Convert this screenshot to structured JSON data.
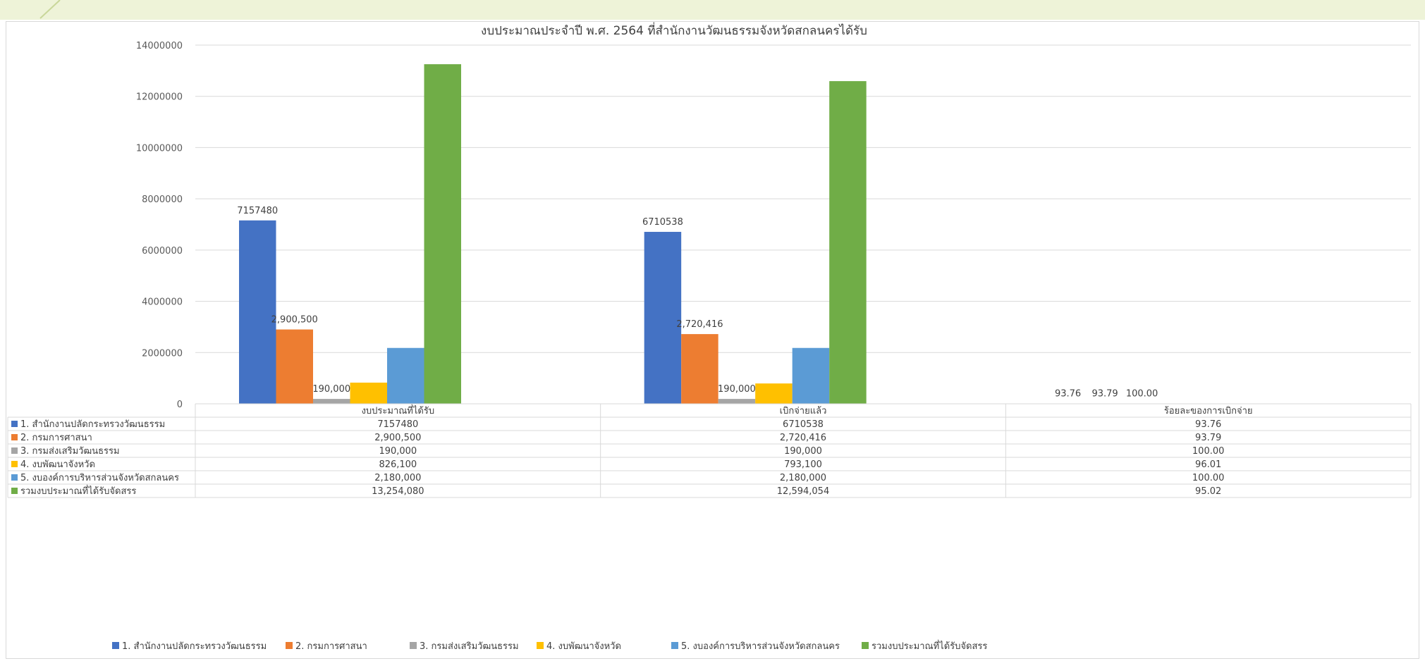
{
  "chart_data": {
    "type": "bar",
    "title": "งบประมาณประจำปี พ.ศ. 2564 ที่สำนักงานวัฒนธรรมจังหวัดสกลนครได้รับ",
    "categories": [
      "งบประมาณที่ได้รับ",
      "เบิกจ่ายแล้ว",
      "ร้อยละของการเบิกจ่าย"
    ],
    "ylim": [
      0,
      14000000
    ],
    "y_ticks": [
      "0",
      "2000000",
      "4000000",
      "6000000",
      "8000000",
      "10000000",
      "12000000",
      "14000000"
    ],
    "grid": true,
    "legend_position": "bottom",
    "series": [
      {
        "name": "1. สำนักงานปลัดกระทรวงวัฒนธรรม",
        "color": "#4472c4",
        "values": [
          7157480,
          6710538,
          93.76
        ],
        "table_values": [
          "7157480",
          "6710538",
          "93.76"
        ],
        "bar_labels": [
          "7157480",
          "6710538",
          "93.76"
        ]
      },
      {
        "name": "2. กรมการศาสนา",
        "color": "#ed7d31",
        "values": [
          2900500,
          2720416,
          93.79
        ],
        "table_values": [
          "2,900,500",
          "2,720,416",
          "93.79"
        ],
        "bar_labels": [
          "2,900,500",
          "2,720,416",
          "93.79"
        ]
      },
      {
        "name": "3. กรมส่งเสริมวัฒนธรรม",
        "color": "#a5a5a5",
        "values": [
          190000,
          190000,
          100.0
        ],
        "table_values": [
          "190,000",
          "190,000",
          "100.00"
        ],
        "bar_labels": [
          "190,000",
          "190,000",
          "100.00"
        ]
      },
      {
        "name": "4. งบพัฒนาจังหวัด",
        "color": "#ffc000",
        "values": [
          826100,
          793100,
          96.01
        ],
        "table_values": [
          "826,100",
          "793,100",
          "96.01"
        ],
        "bar_labels": [
          "",
          "",
          ""
        ]
      },
      {
        "name": "5. งบองค์การบริหารส่วนจังหวัดสกลนคร",
        "color": "#5b9bd5",
        "values": [
          2180000,
          2180000,
          100.0
        ],
        "table_values": [
          "2,180,000",
          "2,180,000",
          "100.00"
        ],
        "bar_labels": [
          "",
          "",
          ""
        ]
      },
      {
        "name": "รวมงบประมาณที่ได้รับจัดสรร",
        "color": "#70ad47",
        "values": [
          13254080,
          12594054,
          95.02
        ],
        "table_values": [
          "13,254,080",
          "12,594,054",
          "95.02"
        ],
        "bar_labels": [
          "",
          "",
          ""
        ]
      }
    ]
  }
}
